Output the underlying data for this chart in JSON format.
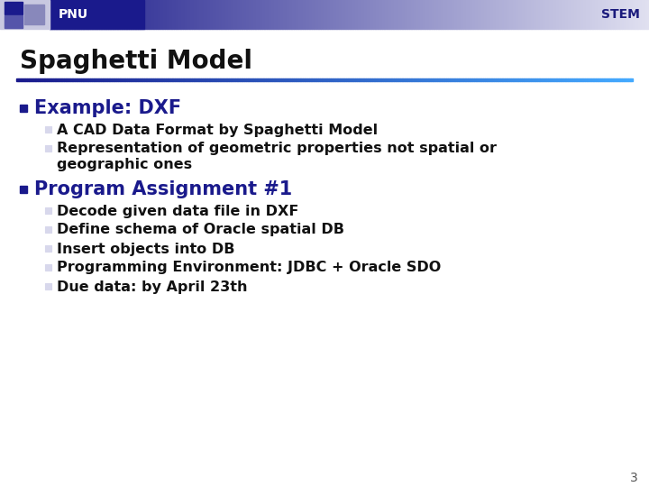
{
  "header_left": "PNU",
  "header_right": "STEM",
  "title": "Spaghetti Model",
  "slide_number": "3",
  "section1_bullet": "Example: DXF",
  "section1_subitems": [
    "A CAD Data Format by Spaghetti Model",
    "Representation of geometric properties not spatial or",
    "geographic ones"
  ],
  "section2_bullet": "Program Assignment #1",
  "section2_subitems": [
    "Decode given data file in DXF",
    "Define schema of Oracle spatial DB",
    "Insert objects into DB",
    "Programming Environment: JDBC + Oracle SDO",
    "Due data: by April 23th"
  ],
  "bg_color": "#ffffff",
  "header_text_color": "#ffffff",
  "header_right_text_color": "#1a1a7c",
  "title_color": "#111111",
  "bullet_color": "#1a1a8c",
  "sub_bullet_color": "#111111",
  "sub_bullet_box_color": "#c8c8e0",
  "slide_num_color": "#555555",
  "title_fontsize": 20,
  "bullet_fontsize": 15,
  "sub_bullet_fontsize": 11.5,
  "header_fontsize": 10,
  "slide_num_fontsize": 10
}
